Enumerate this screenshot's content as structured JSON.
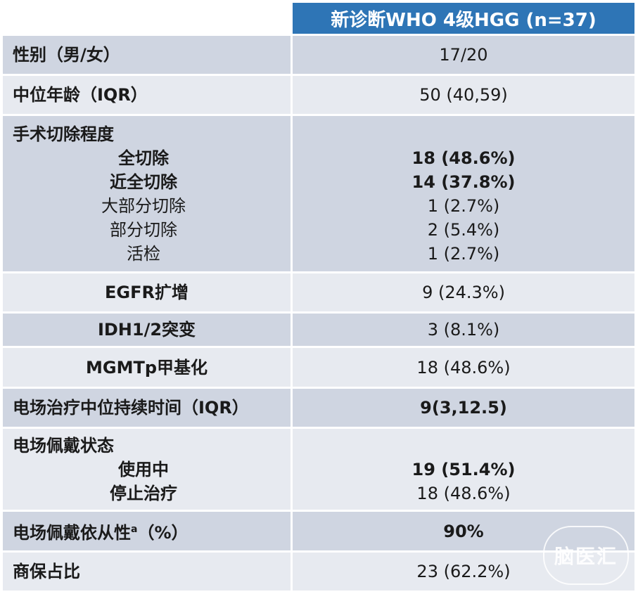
{
  "header": {
    "col2": "新诊断WHO 4级HGG (n=37)"
  },
  "rows": {
    "sex": {
      "label": "性别（男/女）",
      "value": "17/20"
    },
    "age": {
      "label": "中位年龄（IQR）",
      "value": "50 (40,59)"
    },
    "resection": {
      "label": "手术切除程度",
      "items": [
        {
          "label": "全切除",
          "value": "18 (48.6%)"
        },
        {
          "label": "近全切除",
          "value": "14 (37.8%)"
        },
        {
          "label": "大部分切除",
          "value": "1 (2.7%)"
        },
        {
          "label": "部分切除",
          "value": "2 (5.4%)"
        },
        {
          "label": "活检",
          "value": "1 (2.7%)"
        }
      ]
    },
    "egfr": {
      "label": "EGFR扩增",
      "value": "9 (24.3%)"
    },
    "idh": {
      "label": "IDH1/2突变",
      "value": "3 (8.1%)"
    },
    "mgmt": {
      "label": "MGMTp甲基化",
      "value": "18 (48.6%)"
    },
    "ttf_duration": {
      "label": "电场治疗中位持续时间（IQR）",
      "value": "9(3,12.5)"
    },
    "wear_status": {
      "label": "电场佩戴状态",
      "items": [
        {
          "label": "使用中",
          "value": "19 (51.4%)"
        },
        {
          "label": "停止治疗",
          "value": "18 (48.6%)"
        }
      ]
    },
    "compliance": {
      "label": "电场佩戴依从性",
      "sup": "a",
      "label_suffix": "（%）",
      "value": "90%"
    },
    "insurance": {
      "label": "商保占比",
      "value": "23 (62.2%)"
    }
  },
  "watermark": {
    "text": "脑医汇"
  }
}
